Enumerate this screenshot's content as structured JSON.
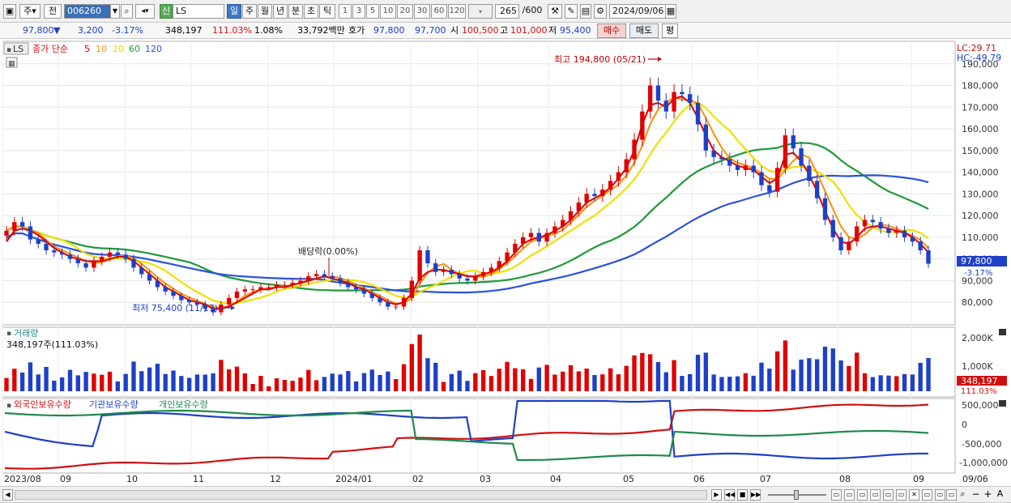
{
  "toolbar": {
    "period_main": "주",
    "prev_label": "전",
    "stock_code": "006260",
    "new_badge": "신",
    "stock_name": "LS",
    "periods": [
      "일",
      "주",
      "월",
      "년",
      "분",
      "초",
      "틱"
    ],
    "intervals": [
      "1",
      "3",
      "5",
      "10",
      "20",
      "30",
      "60",
      "120"
    ],
    "count": "265",
    "count_total": "/600",
    "date": "2024/09/06"
  },
  "quote": {
    "price": "97,800",
    "arrow": "▼",
    "change": "3,200",
    "change_pct": "-3.17%",
    "volume": "348,197",
    "volume_ratio": "111.03%",
    "turnover": "1.08%",
    "amount": "33,792백만",
    "ask_label": "호가",
    "ask": "97,800",
    "bid": "97,700",
    "open_label": "시",
    "open": "100,500",
    "high_label": "고",
    "high": "101,000",
    "low_label": "저",
    "low": "95,400",
    "buy_label": "매수",
    "sell_label": "매도",
    "eval_label": "평"
  },
  "legend": {
    "ticker": "LS",
    "series_label": "종가 단순",
    "ma": [
      {
        "name": "5",
        "color": "#e00000"
      },
      {
        "name": "10",
        "color": "#ff9000"
      },
      {
        "name": "20",
        "color": "#f0e000"
      },
      {
        "name": "60",
        "color": "#1f9a3a"
      },
      {
        "name": "120",
        "color": "#2a52e0"
      }
    ],
    "lc": "LC:29.71",
    "hc": "HC:-49.79"
  },
  "annotations": {
    "high": "최고 194,800 (05/21)",
    "low": "최저 75,400 (11/17)",
    "dividend": "배당락(0.00%)"
  },
  "volume_panel": {
    "title": "거래량",
    "value": "348,197주(111.03%)",
    "tag_value": "348,197",
    "tag_pct": "111.03%",
    "ticks": [
      "2,000K",
      "1,000K"
    ]
  },
  "holding_panel": {
    "labels": [
      {
        "name": "외국인보유수량",
        "color": "#d01010"
      },
      {
        "name": "기관보유수량",
        "color": "#1e40c8"
      },
      {
        "name": "개인보유수량",
        "color": "#1f8a4a"
      }
    ],
    "ticks": [
      "500,000",
      "0",
      "-500,000",
      "-1,000,000"
    ]
  },
  "price_tag": {
    "price": "97,800",
    "pct": "-3.17%"
  },
  "xaxis": [
    "2023/08",
    "09",
    "10",
    "11",
    "12",
    "2024/01",
    "02",
    "03",
    "04",
    "05",
    "06",
    "07",
    "08",
    "09",
    "09/06"
  ],
  "chart_data": {
    "type": "candlestick",
    "x_range": [
      "2023/08",
      "2024/09/06"
    ],
    "y_ticks": [
      190000,
      180000,
      170000,
      160000,
      150000,
      140000,
      130000,
      120000,
      110000,
      100000,
      90000,
      80000
    ],
    "ylim": [
      70000,
      200000
    ],
    "close": [
      113000,
      117000,
      115000,
      109000,
      107000,
      104000,
      103000,
      102000,
      100000,
      98000,
      96000,
      99000,
      101000,
      103000,
      102000,
      100000,
      96000,
      93000,
      90000,
      87000,
      85000,
      83000,
      81000,
      80000,
      79000,
      77000,
      75400,
      79000,
      82000,
      85000,
      86000,
      86000,
      87000,
      87000,
      88000,
      88000,
      89000,
      90000,
      92000,
      93000,
      92000,
      91000,
      89000,
      87000,
      86000,
      84000,
      82000,
      80000,
      78000,
      78000,
      82000,
      90000,
      104000,
      98000,
      94000,
      95000,
      93000,
      91000,
      90000,
      92000,
      94000,
      96000,
      99000,
      103000,
      107000,
      110000,
      112000,
      108000,
      112000,
      115000,
      118000,
      122000,
      126000,
      130000,
      129000,
      132000,
      136000,
      140000,
      146000,
      155000,
      168000,
      180000,
      173000,
      168000,
      177000,
      176000,
      172000,
      162000,
      150000,
      147000,
      146000,
      143000,
      141000,
      143000,
      140000,
      134000,
      131000,
      142000,
      157000,
      151000,
      143000,
      136000,
      128000,
      118000,
      110000,
      104000,
      108000,
      115000,
      118000,
      117000,
      114000,
      112000,
      113000,
      110000,
      108000,
      104000,
      97800
    ],
    "ma5": [
      108000,
      113000,
      114000,
      113000,
      111000,
      108000,
      105000,
      103000,
      101000,
      100000,
      99000,
      99000,
      99000,
      100000,
      101000,
      101000,
      99000,
      96000,
      93000,
      90000,
      87000,
      85000,
      83000,
      81000,
      80000,
      79000,
      77000,
      77000,
      78000,
      80000,
      82000,
      84000,
      86000,
      86000,
      87000,
      87000,
      88000,
      89000,
      90000,
      91000,
      92000,
      91000,
      90000,
      89000,
      87000,
      86000,
      84000,
      82000,
      80000,
      79000,
      80000,
      84000,
      91000,
      94000,
      95000,
      95000,
      94000,
      93000,
      92000,
      92000,
      93000,
      94000,
      96000,
      99000,
      103000,
      107000,
      109000,
      110000,
      111000,
      113000,
      115000,
      118000,
      122000,
      126000,
      128000,
      130000,
      133000,
      137000,
      142000,
      150000,
      162000,
      171000,
      172000,
      170000,
      174000,
      175000,
      172000,
      165000,
      157000,
      150000,
      147000,
      145000,
      143000,
      142000,
      141000,
      138000,
      135000,
      137000,
      148000,
      149000,
      145000,
      139000,
      131000,
      122000,
      114000,
      108000,
      107000,
      110000,
      114000,
      115000,
      115000,
      114000,
      113000,
      112000,
      110000,
      107000,
      103000
    ],
    "ma20_visible": true,
    "ma60_visible": true,
    "ma120_visible": true
  }
}
